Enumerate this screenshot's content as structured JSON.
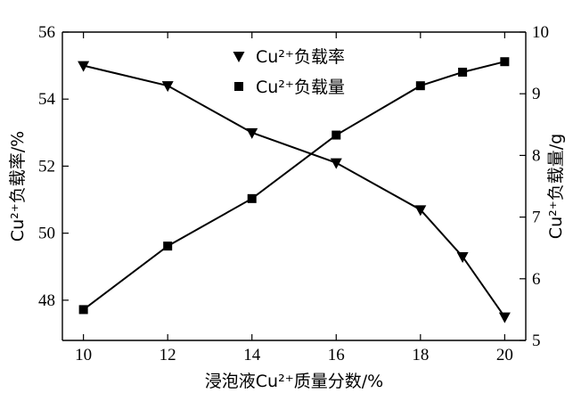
{
  "chart_data": {
    "type": "line",
    "title": "",
    "xlabel": "浸泡液Cu²⁺质量分数/%",
    "ylabel_left": "Cu²⁺负载率/%",
    "ylabel_right": "Cu²⁺负载量/g",
    "xlim": [
      9.5,
      20.5
    ],
    "ylim_left": [
      46.8,
      56
    ],
    "ylim_right": [
      5,
      10
    ],
    "xticks": [
      10,
      12,
      14,
      16,
      18,
      20
    ],
    "yticks_left": [
      48,
      50,
      52,
      54,
      56
    ],
    "yticks_right": [
      5,
      6,
      7,
      8,
      9,
      10
    ],
    "grid": false,
    "legend_position": "top-center",
    "series": [
      {
        "name": "Cu²⁺负载率",
        "axis": "left",
        "marker": "triangle-down",
        "x": [
          10,
          12,
          14,
          16,
          18,
          19,
          20
        ],
        "y": [
          55.0,
          54.4,
          53.0,
          52.1,
          50.7,
          49.3,
          47.5
        ]
      },
      {
        "name": "Cu²⁺负载量",
        "axis": "right",
        "marker": "square",
        "x": [
          10,
          12,
          14,
          16,
          18,
          19,
          20
        ],
        "y": [
          5.5,
          6.53,
          7.3,
          8.33,
          9.13,
          9.35,
          9.52
        ]
      }
    ]
  }
}
